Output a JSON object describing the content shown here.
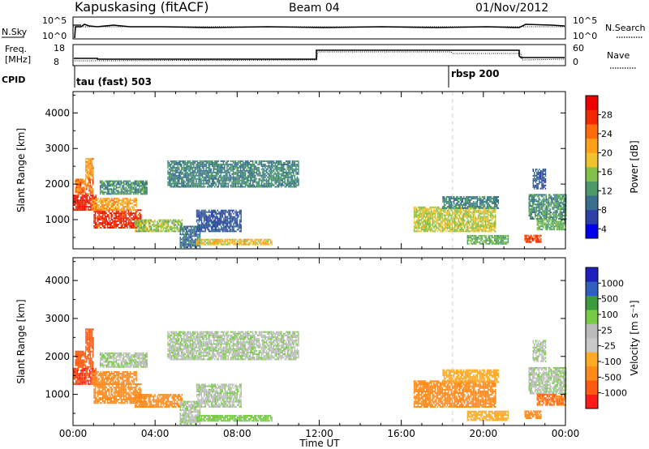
{
  "header": {
    "station": "Kapuskasing (fitACF)",
    "beam": "Beam 04",
    "date": "01/Nov/2012"
  },
  "panels": {
    "nsky_label": "N.Sky",
    "nsky_ticks": [
      "10^5",
      "10^0"
    ],
    "nsearch_label": "N.Search",
    "nsearch_ticks": [
      "10^5",
      "10^0"
    ],
    "freq_label_1": "Freq.",
    "freq_label_2": "[MHz]",
    "freq_ticks": [
      "18",
      "8"
    ],
    "nave_label": "Nave",
    "nave_ticks": [
      "60",
      "0"
    ],
    "cpid_label": "CPID",
    "cpid_1": "tau (fast) 503",
    "cpid_2": "rbsp 200"
  },
  "colors": {
    "power_scale": [
      "#0000ee",
      "#2e3fa8",
      "#3b6f8f",
      "#4c9a6a",
      "#83c24a",
      "#f2c12e",
      "#ff9f1a",
      "#ff6a0a",
      "#f22a00",
      "#ee0000"
    ],
    "velocity_scale": [
      "#ff1a1a",
      "#ff5a10",
      "#ff8a1a",
      "#ffaa22",
      "#c8c8c8",
      "#bbbbbb",
      "#77cc44",
      "#3a9c3a",
      "#2f5fbf",
      "#2020c0"
    ],
    "ground_scatter": "#bfbfbf",
    "guide_line": "#cfcfcf"
  },
  "chart_data": {
    "type": "heatmap",
    "xlabel": "Time UT",
    "x_ticks": [
      "00:00",
      "04:00",
      "08:00",
      "12:00",
      "16:00",
      "20:00",
      "00:00"
    ],
    "x_range_hours": [
      0,
      24
    ],
    "guide_line_hour": 18.5,
    "ylabel": "Slant Range [km]",
    "y_ticks": [
      1000,
      2000,
      3000,
      4000
    ],
    "ylim": [
      180,
      4600
    ],
    "power_panel": {
      "colorbar_label": "Power [dB]",
      "colorbar_ticks": [
        "28",
        "24",
        "20",
        "16",
        "12",
        "8",
        "4"
      ],
      "range": [
        0,
        30
      ]
    },
    "velocity_panel": {
      "colorbar_label": "Velocity [m s⁻¹]",
      "colorbar_ticks": [
        "1000",
        "500",
        "100",
        "25",
        "-25",
        "-100",
        "-500",
        "-1000"
      ]
    },
    "regions": [
      {
        "t0": 0.0,
        "t1": 1.1,
        "r0": 1250,
        "r1": 1700,
        "power": 27,
        "velocity": "-800"
      },
      {
        "t0": 0.1,
        "t1": 1.0,
        "r0": 1700,
        "r1": 2150,
        "power": 22,
        "velocity": "-500"
      },
      {
        "t0": 0.6,
        "t1": 1.0,
        "r0": 2150,
        "r1": 2700,
        "power": 20,
        "velocity": "-500"
      },
      {
        "t0": 1.0,
        "t1": 3.3,
        "r0": 750,
        "r1": 1250,
        "power": 26,
        "velocity": "-300"
      },
      {
        "t0": 0.9,
        "t1": 3.1,
        "r0": 1250,
        "r1": 1600,
        "power": 19,
        "velocity": "-200"
      },
      {
        "t0": 3.0,
        "t1": 5.3,
        "r0": 650,
        "r1": 1000,
        "power": 14,
        "velocity": "-200"
      },
      {
        "t0": 1.3,
        "t1": 3.6,
        "r0": 1700,
        "r1": 2100,
        "power": 10,
        "velocity": "10"
      },
      {
        "t0": 4.6,
        "t1": 11.0,
        "r0": 1900,
        "r1": 2650,
        "power": 9,
        "velocity": "10"
      },
      {
        "t0": 5.2,
        "t1": 6.2,
        "r0": 200,
        "r1": 800,
        "power": 8,
        "velocity": "10"
      },
      {
        "t0": 6.0,
        "t1": 9.7,
        "r0": 280,
        "r1": 450,
        "power": 17,
        "velocity": "60"
      },
      {
        "t0": 6.0,
        "t1": 8.2,
        "r0": 650,
        "r1": 1250,
        "power": 6,
        "velocity": "10"
      },
      {
        "t0": 16.6,
        "t1": 20.6,
        "r0": 650,
        "r1": 1350,
        "power": 15,
        "velocity": "-200"
      },
      {
        "t0": 18.0,
        "t1": 20.7,
        "r0": 1300,
        "r1": 1650,
        "power": 9,
        "velocity": "-100"
      },
      {
        "t0": 19.2,
        "t1": 21.2,
        "r0": 300,
        "r1": 550,
        "power": 12,
        "velocity": "-100"
      },
      {
        "t0": 22.0,
        "t1": 22.8,
        "r0": 350,
        "r1": 550,
        "power": 25,
        "velocity": "-200"
      },
      {
        "t0": 22.2,
        "t1": 24.0,
        "r0": 1000,
        "r1": 1700,
        "power": 10,
        "velocity": "10"
      },
      {
        "t0": 22.6,
        "t1": 24.0,
        "r0": 700,
        "r1": 1000,
        "power": 12,
        "velocity": "-400"
      },
      {
        "t0": 22.4,
        "t1": 23.0,
        "r0": 1850,
        "r1": 2400,
        "power": 6,
        "velocity": "10"
      }
    ]
  }
}
